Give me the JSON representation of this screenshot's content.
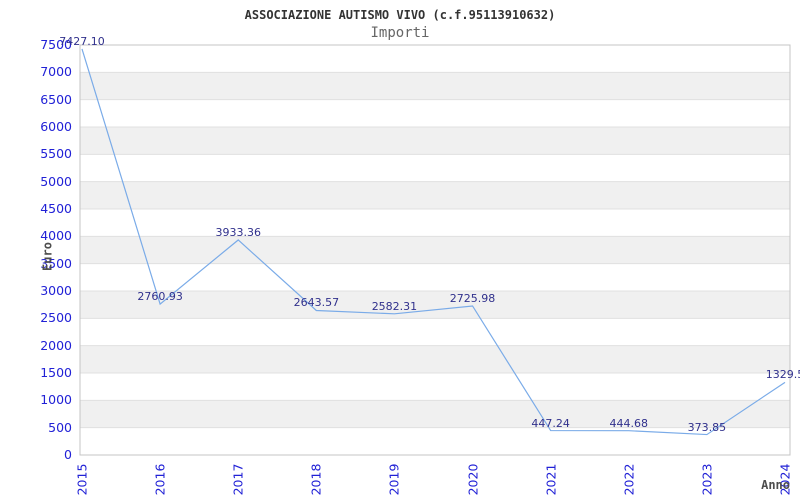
{
  "chart_data": {
    "type": "line",
    "title": "ASSOCIAZIONE AUTISMO VIVO (c.f.95113910632)",
    "subtitle": "Importi",
    "xlabel": "Anno",
    "ylabel": "Euro",
    "categories": [
      "2015",
      "2016",
      "2017",
      "2018",
      "2019",
      "2020",
      "2021",
      "2022",
      "2023",
      "2024"
    ],
    "values": [
      7427.1,
      2760.93,
      3933.36,
      2643.57,
      2582.31,
      2725.98,
      447.24,
      444.68,
      373.85,
      1329.5
    ],
    "point_labels": [
      "7427.10",
      "2760.93",
      "3933.36",
      "2643.57",
      "2582.31",
      "2725.98",
      "447.24",
      "444.68",
      "373.85",
      "1329.5"
    ],
    "ylim": [
      0,
      7500
    ],
    "ytick_step": 500,
    "ytick_labels": [
      "0",
      "500",
      "1000",
      "1500",
      "2000",
      "2500",
      "3000",
      "3500",
      "4000",
      "4500",
      "5000",
      "5500",
      "6000",
      "6500",
      "7000",
      "7500"
    ],
    "grid": true,
    "alternating_bands": true,
    "legend_position": "none",
    "colors": {
      "line": "#7aabe8",
      "tick_label": "#2121d6",
      "point_label": "#30308c",
      "band": "#f0f0f0",
      "grid": "#e0e0e0",
      "plot_border": "#c4c4c4",
      "title": "#333333",
      "subtitle": "#666666",
      "axis_title": "#4d4d4d",
      "background": "#ffffff"
    }
  }
}
